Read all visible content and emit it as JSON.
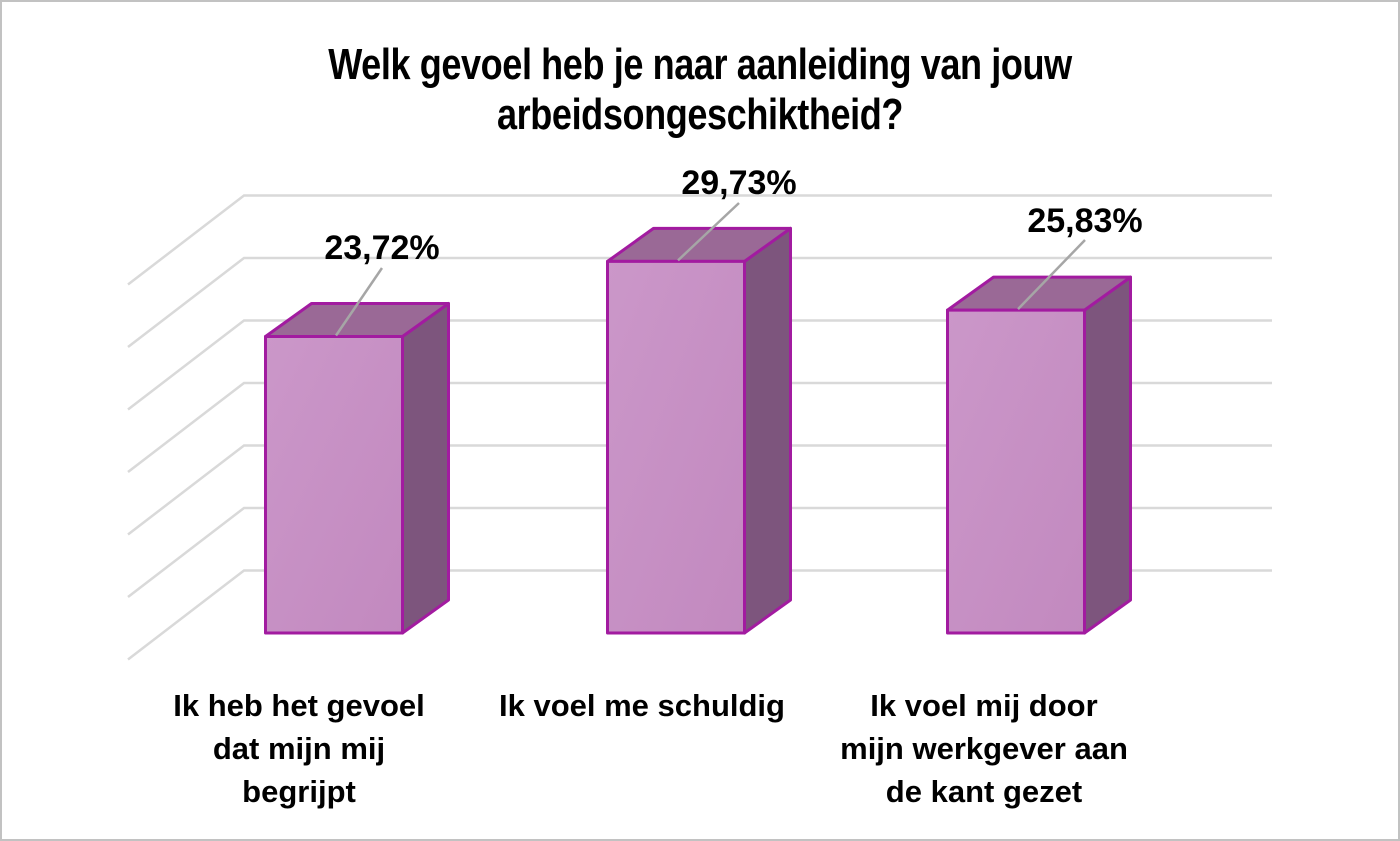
{
  "chart_data": {
    "type": "bar",
    "projection": "3d",
    "title": "Welk gevoel heb je naar aanleiding van jouw arbeidsongeschiktheid?",
    "title_lines": [
      "Welk gevoel heb je naar aanleiding van jouw",
      "arbeidsongeschiktheid?"
    ],
    "categories": [
      "Ik heb het gevoel dat mijn mij begrijpt",
      "Ik voel me schuldig",
      "Ik voel mij door mijn werkgever aan de kant gezet"
    ],
    "category_lines": [
      [
        "Ik heb het gevoel",
        "dat mijn mij",
        "begrijpt"
      ],
      [
        "Ik voel me schuldig"
      ],
      [
        "Ik voel mij door",
        "mijn werkgever aan",
        "de kant gezet"
      ]
    ],
    "values": [
      23.72,
      29.73,
      25.83
    ],
    "data_labels": [
      "23,72%",
      "29,73%",
      "25,83%"
    ],
    "ylabel": "",
    "xlabel": "",
    "ylim": [
      0,
      35
    ],
    "grid_step": 5,
    "gridlines": "on",
    "axis_tick_labels": "none",
    "legend": "none",
    "colors": {
      "bar_front_light": "#cb97c9",
      "bar_front_dark": "#c289bf",
      "bar_top": "#9a6996",
      "bar_side": "#7d557d",
      "bar_edge": "#a21ba0",
      "gridline": "#d9d9d9",
      "leader_line": "#a6a6a6",
      "text": "#000000",
      "background": "#ffffff",
      "frame_border": "#c2c2c2"
    }
  }
}
